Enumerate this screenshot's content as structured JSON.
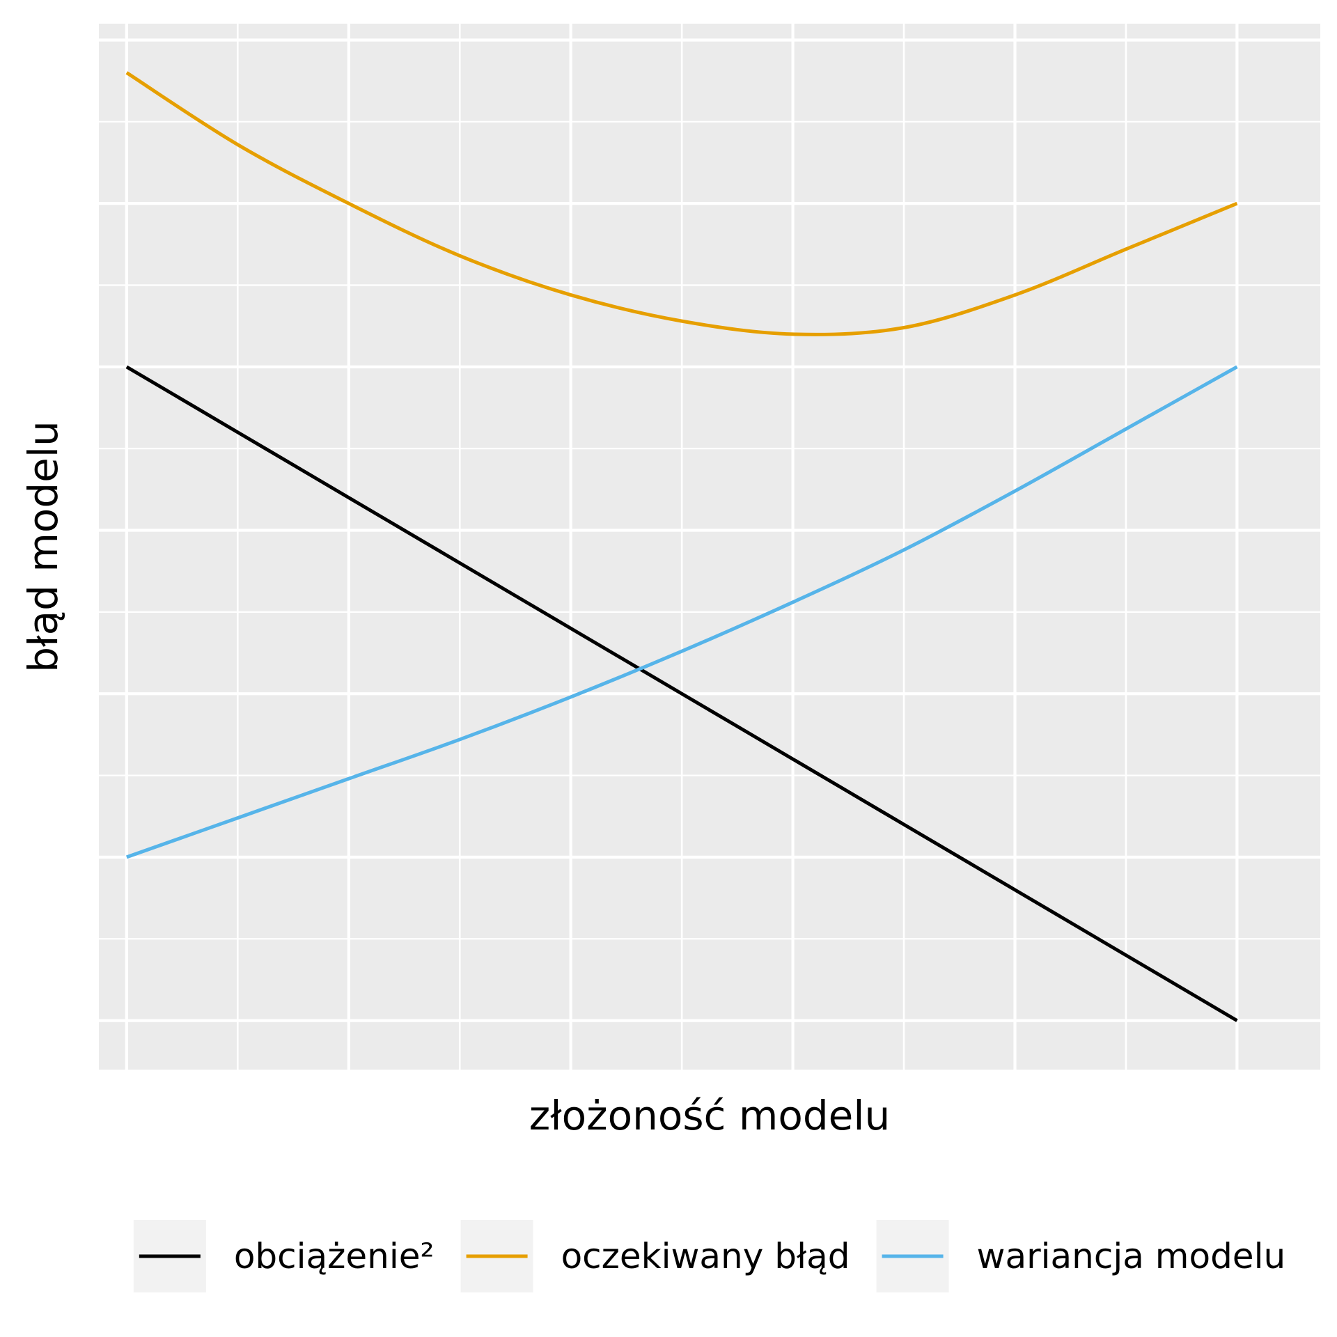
{
  "chart_data": {
    "type": "line",
    "title": "",
    "xlabel": "złożoność modelu",
    "ylabel": "błąd modelu",
    "grid": true,
    "x_tick_labels_shown": false,
    "y_tick_labels_shown": false,
    "legend_position": "bottom",
    "xlim": [
      0.75,
      11.75
    ],
    "ylim": [
      -0.15,
      3.05
    ],
    "x": [
      1,
      2,
      3,
      4,
      5,
      6,
      7,
      8,
      9,
      10,
      11
    ],
    "series": [
      {
        "name": "obciążenie²",
        "color": "#000000",
        "values": [
          2.0,
          1.8,
          1.6,
          1.4,
          1.2,
          1.0,
          0.8,
          0.6,
          0.4,
          0.2,
          0.0
        ]
      },
      {
        "name": "oczekiwany błąd",
        "color": "#E69F00",
        "values": [
          2.9,
          2.68,
          2.5,
          2.34,
          2.22,
          2.14,
          2.1,
          2.12,
          2.22,
          2.36,
          2.5
        ]
      },
      {
        "name": "wariancja modelu",
        "color": "#56B4E9",
        "values": [
          0.5,
          0.62,
          0.74,
          0.86,
          0.99,
          1.13,
          1.28,
          1.44,
          1.62,
          1.81,
          2.0
        ]
      }
    ],
    "x_gridlines": [
      1,
      2,
      3,
      4,
      5,
      6,
      7,
      8,
      9,
      10,
      11
    ],
    "y_gridlines": [
      0,
      0.5,
      1,
      1.5,
      2,
      2.5,
      3
    ]
  }
}
